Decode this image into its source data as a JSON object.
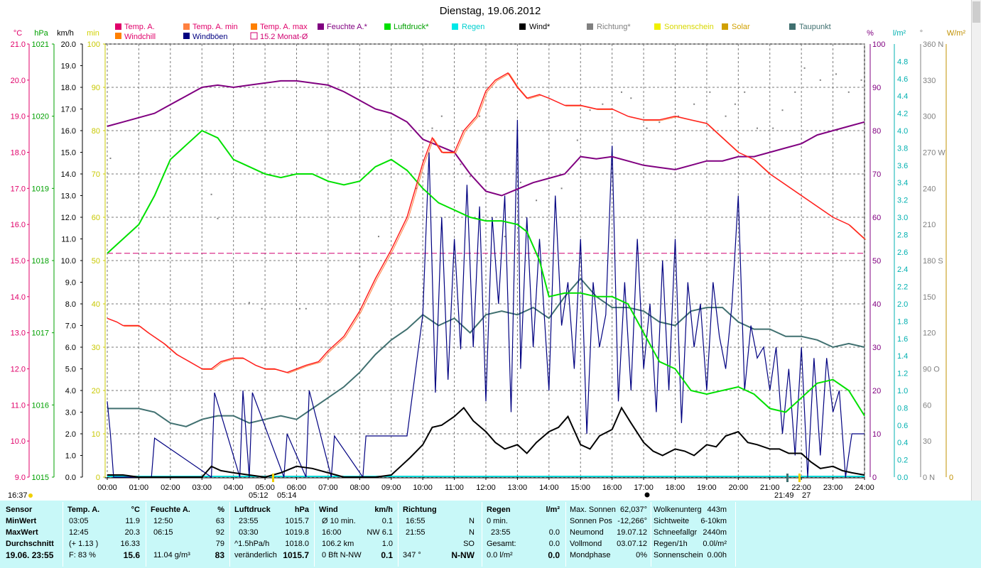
{
  "title": "Dienstag, 19.06.2012",
  "time_labels": [
    "00:00",
    "01:00",
    "02:00",
    "03:00",
    "04:00",
    "05:00",
    "06:00",
    "07:00",
    "08:00",
    "09:00",
    "10:00",
    "11:00",
    "12:00",
    "13:00",
    "14:00",
    "15:00",
    "16:00",
    "17:00",
    "18:00",
    "19:00",
    "20:00",
    "21:00",
    "22:00",
    "23:00",
    "24:00"
  ],
  "axis_units": {
    "temp": "°C",
    "hpa": "hPa",
    "kmh": "km/h",
    "min": "min",
    "pct": "%",
    "lm2": "l/m²",
    "deg": "°",
    "wm2": "W/m²"
  },
  "axes": {
    "temp": [
      "21.0",
      "20.0",
      "19.0",
      "18.0",
      "17.0",
      "16.0",
      "15.0",
      "14.0",
      "13.0",
      "12.0",
      "11.0",
      "10.0",
      "9.0"
    ],
    "hpa": [
      "1021",
      "1020",
      "1019",
      "1018",
      "1017",
      "1016",
      "1015"
    ],
    "kmh": [
      "20.0",
      "19.0",
      "18.0",
      "17.0",
      "16.0",
      "15.0",
      "14.0",
      "13.0",
      "12.0",
      "11.0",
      "10.0",
      "9.0",
      "8.0",
      "7.0",
      "6.0",
      "5.0",
      "4.0",
      "3.0",
      "2.0",
      "1.0",
      "0.0"
    ],
    "min": [
      "100",
      "90",
      "80",
      "70",
      "60",
      "50",
      "40",
      "30",
      "20",
      "10",
      "0"
    ],
    "pct": [
      "100",
      "90",
      "80",
      "70",
      "60",
      "50",
      "40",
      "30",
      "20",
      "10",
      "0"
    ],
    "rain": [
      "4.8",
      "4.6",
      "4.4",
      "4.2",
      "4.0",
      "3.8",
      "3.6",
      "3.4",
      "3.2",
      "3.0",
      "2.8",
      "2.6",
      "2.4",
      "2.2",
      "2.0",
      "1.8",
      "1.6",
      "1.4",
      "1.2",
      "1.0",
      "0.8",
      "0.6",
      "0.4",
      "0.2",
      "0.0"
    ],
    "dir": [
      "360 N",
      "330",
      "300",
      "270 W",
      "240",
      "210",
      "180 S",
      "150",
      "120",
      "90  O",
      "60",
      "30",
      "0    N"
    ],
    "wm2": [
      "0"
    ]
  },
  "legend": [
    {
      "label": "Temp. A.",
      "color": "#e0006a"
    },
    {
      "label": "Windchill",
      "color": "#ff8000"
    },
    {
      "label": "Temp. A. min",
      "color": "#ff8040"
    },
    {
      "label": "Windböen",
      "color": "#000080"
    },
    {
      "label": "Temp. A. max",
      "color": "#ff8000"
    },
    {
      "label": "15.2 Monat-Ø",
      "color": "#d00070"
    },
    {
      "label": "Feuchte A.*",
      "color": "#800080"
    },
    {
      "label": "Luftdruck*",
      "color": "#00e000"
    },
    {
      "label": "Regen",
      "color": "#00e8e8"
    },
    {
      "label": "Wind*",
      "color": "#000000"
    },
    {
      "label": "Richtung*",
      "color": "#808080"
    },
    {
      "label": "Sonnenschein",
      "color": "#f0f000"
    },
    {
      "label": "Solar",
      "color": "#d0a000"
    },
    {
      "label": "Taupunkt",
      "color": "#407070"
    }
  ],
  "below_axis": {
    "left_time": "16:37",
    "sunrise": "05:12",
    "sunrise2": "05:14",
    "sunset": "21:49",
    "sunset_mins": "27"
  },
  "chart_data": {
    "type": "line",
    "title": "Dienstag, 19.06.2012",
    "x_unit": "hours",
    "xlim": [
      0,
      24
    ],
    "series": [
      {
        "name": "Temp. A.",
        "axis": "°C",
        "ylim": [
          9,
          21
        ],
        "color": "#e0006a",
        "x": [
          0,
          0.3,
          0.5,
          1,
          1.3,
          1.8,
          2.2,
          2.6,
          3,
          3.3,
          3.6,
          4,
          4.3,
          4.7,
          5,
          5.3,
          5.7,
          6,
          6.3,
          6.7,
          7,
          7.5,
          8,
          8.5,
          9,
          9.5,
          10,
          10.3,
          10.6,
          11,
          11.3,
          11.7,
          12,
          12.3,
          12.7,
          13,
          13.3,
          13.7,
          14,
          14.5,
          15,
          15.5,
          16,
          16.5,
          17,
          17.5,
          18,
          18.5,
          19,
          19.5,
          20,
          20.5,
          21,
          21.5,
          22,
          22.5,
          23,
          23.5,
          24
        ],
        "y": [
          13.4,
          13.3,
          13.2,
          13.2,
          13.0,
          12.7,
          12.4,
          12.2,
          12.0,
          12.0,
          12.2,
          12.3,
          12.3,
          12.1,
          12.0,
          12.0,
          11.9,
          12.0,
          12.1,
          12.2,
          12.5,
          12.9,
          13.6,
          14.5,
          15.3,
          16.2,
          17.7,
          18.4,
          18.0,
          18.0,
          18.6,
          19.0,
          19.7,
          20.0,
          20.2,
          19.8,
          19.5,
          19.6,
          19.5,
          19.3,
          19.3,
          19.2,
          19.2,
          19.0,
          18.9,
          18.9,
          19.0,
          18.9,
          18.8,
          18.4,
          18.0,
          17.8,
          17.4,
          17.1,
          16.8,
          16.5,
          16.2,
          16.0,
          15.6
        ]
      },
      {
        "name": "Feuchte A.*",
        "axis": "%",
        "ylim": [
          0,
          100
        ],
        "color": "#800080",
        "x": [
          0,
          0.5,
          1,
          1.5,
          2,
          2.5,
          3,
          3.5,
          4,
          4.5,
          5,
          5.5,
          6,
          6.5,
          7,
          7.5,
          8,
          8.5,
          9,
          9.5,
          10,
          10.5,
          11,
          11.5,
          12,
          12.5,
          13,
          13.5,
          14,
          14.5,
          15,
          15.5,
          16,
          16.5,
          17,
          17.5,
          18,
          18.5,
          19,
          19.5,
          20,
          20.5,
          21,
          21.5,
          22,
          22.5,
          23,
          23.5,
          24
        ],
        "y": [
          81,
          82,
          83,
          84,
          86,
          88,
          90,
          90.5,
          90,
          90.5,
          91,
          91.5,
          91.5,
          91,
          90.5,
          89,
          87,
          85,
          84,
          82,
          78,
          76.5,
          75,
          70,
          66,
          65,
          66.5,
          68,
          69,
          70,
          74,
          73.5,
          74,
          73,
          72,
          71.5,
          71,
          72,
          73,
          73,
          74,
          74,
          75,
          76,
          77,
          79,
          80,
          81,
          82
        ]
      },
      {
        "name": "Luftdruck*",
        "axis": "hPa",
        "ylim": [
          1015,
          1021
        ],
        "color": "#00e000",
        "x": [
          0,
          0.5,
          1,
          1.5,
          2,
          2.5,
          3,
          3.5,
          4,
          4.5,
          5,
          5.5,
          6,
          6.5,
          7,
          7.5,
          8,
          8.5,
          9,
          9.5,
          10,
          10.5,
          11,
          11.5,
          12,
          12.5,
          13,
          13.3,
          13.7,
          14,
          14.5,
          15,
          15.5,
          16,
          16.5,
          17,
          17.5,
          18,
          18.5,
          19,
          19.5,
          20,
          20.5,
          21,
          21.5,
          22,
          22.5,
          23,
          23.5,
          24
        ],
        "y": [
          1018.1,
          1018.3,
          1018.5,
          1018.9,
          1019.4,
          1019.6,
          1019.8,
          1019.7,
          1019.4,
          1019.3,
          1019.2,
          1019.15,
          1019.2,
          1019.2,
          1019.1,
          1019.05,
          1019.1,
          1019.3,
          1019.4,
          1019.25,
          1019.0,
          1018.8,
          1018.7,
          1018.6,
          1018.55,
          1018.55,
          1018.5,
          1018.4,
          1018.0,
          1017.5,
          1017.55,
          1017.55,
          1017.5,
          1017.5,
          1017.4,
          1017.0,
          1016.6,
          1016.5,
          1016.2,
          1016.15,
          1016.2,
          1016.25,
          1016.15,
          1015.95,
          1015.9,
          1016.1,
          1016.3,
          1016.35,
          1016.2,
          1015.85
        ]
      },
      {
        "name": "Taupunkt",
        "axis": "°C",
        "ylim": [
          9,
          21
        ],
        "color": "#407070",
        "x": [
          0,
          0.5,
          1,
          1.5,
          2,
          2.5,
          3,
          3.5,
          4,
          4.5,
          5,
          5.5,
          6,
          6.5,
          7,
          7.5,
          8,
          8.5,
          9,
          9.5,
          10,
          10.5,
          11,
          11.5,
          12,
          12.5,
          13,
          13.5,
          14,
          14.5,
          15,
          15.5,
          16,
          16.5,
          17,
          17.5,
          18,
          18.5,
          19,
          19.5,
          20,
          20.5,
          21,
          21.5,
          22,
          22.5,
          23,
          23.5,
          24
        ],
        "y": [
          10.9,
          10.9,
          10.9,
          10.8,
          10.5,
          10.4,
          10.6,
          10.7,
          10.7,
          10.5,
          10.6,
          10.7,
          10.6,
          10.9,
          11.2,
          11.5,
          11.9,
          12.4,
          12.8,
          13.1,
          13.5,
          13.2,
          13.4,
          13.0,
          13.5,
          13.6,
          13.5,
          13.7,
          13.4,
          14.0,
          14.5,
          14.0,
          13.7,
          13.7,
          13.6,
          13.3,
          13.2,
          13.6,
          13.7,
          13.7,
          13.3,
          13.1,
          13.1,
          12.9,
          12.9,
          12.8,
          12.6,
          12.7,
          12.6
        ]
      },
      {
        "name": "Windböen",
        "axis": "km/h",
        "ylim": [
          0,
          20
        ],
        "color": "#000080",
        "x": [
          0,
          0.1,
          0.2,
          1.4,
          1.5,
          3.3,
          3.4,
          4.2,
          4.3,
          4.5,
          4.6,
          5.6,
          5.7,
          6.3,
          6.4,
          7.1,
          7.2,
          8.1,
          8.2,
          9.5,
          10,
          10.2,
          10.4,
          10.6,
          10.8,
          11,
          11.2,
          11.4,
          11.6,
          11.8,
          12,
          12.2,
          12.4,
          12.6,
          12.8,
          13,
          13.1,
          13.3,
          13.5,
          13.7,
          14,
          14.2,
          14.4,
          14.6,
          14.8,
          15,
          15.2,
          15.4,
          15.6,
          15.8,
          16,
          16.2,
          16.4,
          16.6,
          16.8,
          17,
          17.2,
          17.4,
          17.6,
          17.8,
          18,
          18.2,
          18.4,
          18.6,
          18.8,
          19,
          19.2,
          19.4,
          19.6,
          19.8,
          20,
          20.2,
          20.4,
          20.6,
          20.8,
          21,
          21.2,
          21.4,
          21.6,
          21.8,
          22,
          22.2,
          22.4,
          22.6,
          22.8,
          23,
          23.2,
          23.4,
          23.6,
          23.8,
          24
        ],
        "y": [
          3.5,
          2.0,
          0.0,
          0.0,
          1.8,
          0.0,
          3.9,
          0.0,
          4.0,
          0.0,
          3.9,
          0.0,
          2.0,
          0.0,
          4.0,
          0.0,
          1.9,
          0.0,
          1.9,
          1.9,
          7.5,
          15.0,
          3.9,
          12.0,
          4.5,
          11.0,
          5.9,
          13.5,
          6.0,
          12.5,
          3.5,
          12.0,
          8.0,
          13.0,
          3.0,
          16.5,
          5.0,
          12.0,
          6.0,
          11.0,
          4.0,
          13.0,
          7.0,
          9.0,
          5.0,
          11.0,
          2.0,
          9.0,
          6.0,
          7.5,
          15.3,
          3.5,
          9.0,
          4.0,
          11.0,
          5.0,
          8.0,
          3.0,
          10.0,
          4.0,
          11.0,
          2.5,
          9.0,
          6.0,
          8.0,
          4.0,
          9.0,
          6.5,
          5.0,
          8.0,
          13.0,
          4.0,
          7.0,
          5.5,
          6.0,
          4.0,
          6.0,
          2.0,
          5.0,
          1.0,
          6.0,
          0.0,
          5.5,
          1.0,
          5.5,
          3.0,
          4.0,
          0.0,
          2.0,
          2.0,
          2.0
        ]
      },
      {
        "name": "Wind*",
        "axis": "km/h",
        "ylim": [
          0,
          20
        ],
        "color": "#000000",
        "x": [
          0,
          0.5,
          1,
          2,
          3,
          3.3,
          3.6,
          4,
          4.5,
          5,
          5.5,
          6,
          6.5,
          7,
          7.5,
          8,
          8.5,
          9,
          9.3,
          9.6,
          10,
          10.3,
          10.6,
          11,
          11.3,
          11.6,
          12,
          12.3,
          12.6,
          13,
          13.3,
          13.6,
          14,
          14.3,
          14.6,
          15,
          15.3,
          15.6,
          16,
          16.3,
          16.6,
          17,
          17.3,
          17.6,
          18,
          18.3,
          18.6,
          19,
          19.3,
          19.6,
          20,
          20.3,
          20.6,
          21,
          21.3,
          21.6,
          22,
          22.3,
          22.6,
          23,
          23.3,
          23.6,
          24
        ],
        "y": [
          0.1,
          0.1,
          0.0,
          0.0,
          0.0,
          0.5,
          0.3,
          0.2,
          0.1,
          0.0,
          0.2,
          0.5,
          0.4,
          0.2,
          0.0,
          0.0,
          0.0,
          0.1,
          0.5,
          0.9,
          1.5,
          2.3,
          2.4,
          2.8,
          3.2,
          2.6,
          2.1,
          1.6,
          1.3,
          1.5,
          1.1,
          1.6,
          2.1,
          2.3,
          2.8,
          1.5,
          1.3,
          1.9,
          2.2,
          3.2,
          2.5,
          1.6,
          1.2,
          1.0,
          1.3,
          1.2,
          1.0,
          1.5,
          1.4,
          1.9,
          2.1,
          1.6,
          1.5,
          1.3,
          1.3,
          1.1,
          1.1,
          0.7,
          0.4,
          0.5,
          0.3,
          0.2,
          0.1
        ]
      },
      {
        "name": "Richtung*",
        "axis": "°",
        "ylim": [
          0,
          360
        ],
        "color": "#808080",
        "type": "scatter",
        "x": [
          0.1,
          3.3,
          3.5,
          4.5,
          4.9,
          6.1,
          6.3,
          8,
          8.6,
          9.8,
          10.3,
          10.6,
          11.2,
          11.5,
          11.8,
          12.6,
          13.1,
          13.6,
          14.4,
          14.9,
          15.3,
          15.7,
          16.3,
          16.6,
          17.1,
          17.5,
          18.1,
          18.6,
          19.1,
          19.6,
          19.9,
          20.2,
          20.6,
          21.1,
          21.4,
          21.8,
          22.1,
          22.6,
          23.1,
          23.5,
          23.9
        ],
        "y": [
          265,
          235,
          215,
          145,
          140,
          140,
          140,
          175,
          200,
          240,
          290,
          300,
          260,
          250,
          300,
          200,
          245,
          230,
          240,
          280,
          305,
          310,
          320,
          315,
          290,
          295,
          300,
          310,
          320,
          300,
          310,
          320,
          290,
          290,
          305,
          320,
          340,
          330,
          335,
          320,
          330
        ]
      },
      {
        "name": "15.2 Monat-Ø",
        "axis": "°C",
        "ylim": [
          9,
          21
        ],
        "color": "#d00070",
        "x": [
          0,
          24
        ],
        "y": [
          15.2,
          15.2
        ]
      }
    ]
  },
  "stats": {
    "headers": {
      "sensor": "Sensor",
      "temp": "Temp. A.",
      "temp_unit": "°C",
      "hum": "Feuchte A.",
      "hum_unit": "%",
      "press": "Luftdruck",
      "press_unit": "hPa",
      "wind": "Wind",
      "wind_unit": "km/h",
      "dir": "Richtung",
      "rain": "Regen",
      "rain_unit": "l/m²"
    },
    "rows": [
      "MinWert",
      "MaxWert",
      "Durchschnitt"
    ],
    "last_row_label": "19.06. 23:55",
    "temp": [
      [
        "03:05",
        "11.9"
      ],
      [
        "12:45",
        "20.3"
      ],
      [
        "(+ 1.13 )",
        "16.33"
      ],
      [
        "F: 83 %",
        "15.6"
      ]
    ],
    "hum": [
      [
        "12:50",
        "63"
      ],
      [
        "06:15",
        "92"
      ],
      [
        "",
        "79"
      ],
      [
        "11.04 g/m³",
        "83"
      ]
    ],
    "press": [
      [
        "23:55",
        "1015.7"
      ],
      [
        "03:30",
        "1019.8"
      ],
      [
        "^1.5hPa/h",
        "1018.0"
      ],
      [
        "veränderlich",
        "1015.7"
      ]
    ],
    "wind": [
      [
        "Ø 10 min.",
        "",
        "0.1"
      ],
      [
        "16:00",
        "NW 6.1",
        ""
      ],
      [
        "106.2 km",
        "",
        "1.0"
      ],
      [
        "0 Bft N-NW",
        "",
        "0.1"
      ]
    ],
    "dir": [
      [
        "16:55",
        "N"
      ],
      [
        "21:55",
        "N"
      ],
      [
        "",
        "SO"
      ],
      [
        "347 °",
        "N-NW"
      ]
    ],
    "rain": [
      [
        "0 min.",
        ""
      ],
      [
        "23:55",
        "0.0"
      ],
      [
        "Gesamt:",
        "0.0"
      ],
      [
        "0.0 l/m²",
        "0.0"
      ]
    ],
    "sun": [
      [
        "Max. Sonnen",
        "62,037°"
      ],
      [
        "Sonnen Pos",
        "-12,266°"
      ],
      [
        "Neumond",
        "19.07.12"
      ],
      [
        "Vollmond",
        "03.07.12"
      ],
      [
        "Mondphase",
        "0%"
      ]
    ],
    "misc": [
      [
        "Wolkenunterg",
        "443m"
      ],
      [
        "Sichtweite",
        "6-10km"
      ],
      [
        "Schneefallgr",
        "2440m"
      ],
      [
        "Regen/1h",
        "0.0l/m²"
      ],
      [
        "Sonnenschein",
        "0.00h"
      ]
    ]
  }
}
